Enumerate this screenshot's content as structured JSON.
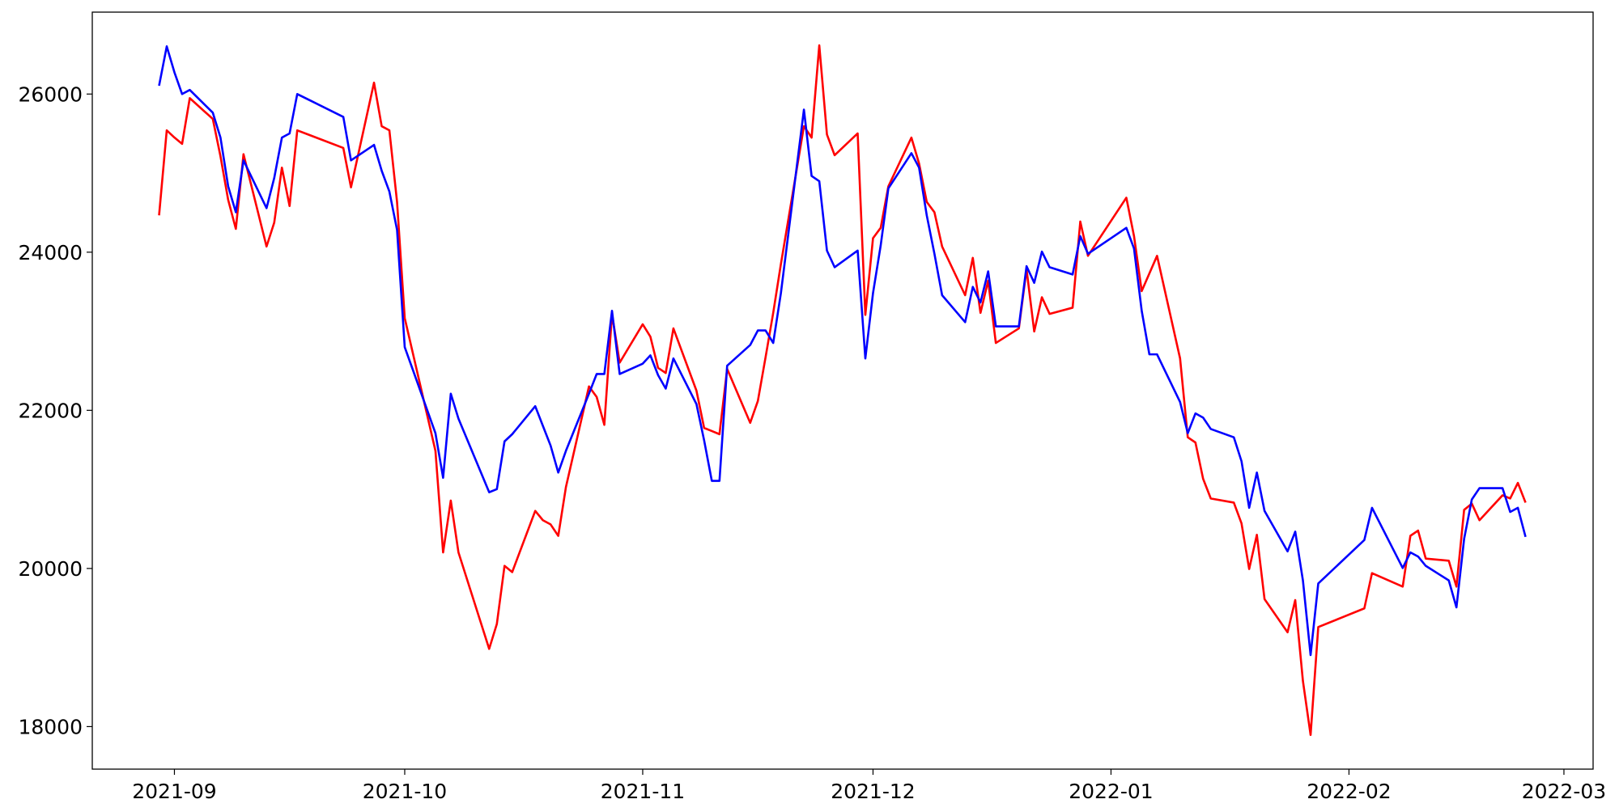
{
  "chart_data": {
    "type": "line",
    "x": [
      18869,
      18870,
      18871,
      18872,
      18873,
      18876,
      18877,
      18878,
      18879,
      18880,
      18883,
      18884,
      18885,
      18886,
      18887,
      18893,
      18894,
      18897,
      18898,
      18899,
      18900,
      18901,
      18905,
      18906,
      18907,
      18908,
      18912,
      18913,
      18914,
      18915,
      18918,
      18919,
      18920,
      18921,
      18922,
      18925,
      18926,
      18927,
      18928,
      18929,
      18932,
      18933,
      18934,
      18935,
      18936,
      18939,
      18940,
      18941,
      18942,
      18943,
      18946,
      18947,
      18948,
      18949,
      18950,
      18953,
      18954,
      18955,
      18956,
      18957,
      18960,
      18961,
      18962,
      18963,
      18964,
      18967,
      18968,
      18969,
      18970,
      18971,
      18974,
      18975,
      18976,
      18977,
      18978,
      18981,
      18982,
      18983,
      18984,
      18985,
      18988,
      18989,
      18990,
      18995,
      18996,
      18997,
      18998,
      18999,
      19002,
      19003,
      19004,
      19005,
      19006,
      19009,
      19010,
      19011,
      19012,
      19013,
      19016,
      19017,
      19018,
      19019,
      19020,
      19026,
      19027,
      19031,
      19032,
      19033,
      19034,
      19037,
      19038,
      19039,
      19040,
      19041,
      19044,
      19045,
      19046,
      19047
    ],
    "series": [
      {
        "color": "#ff0000",
        "values": [
          24466,
          25541,
          25450,
          25370,
          25948,
          25685,
          25213,
          24662,
          24295,
          25239,
          24072,
          24374,
          25069,
          24584,
          25541,
          25318,
          24820,
          26144,
          25593,
          25541,
          24636,
          23167,
          21488,
          20203,
          20859,
          20203,
          18983,
          19298,
          20033,
          19954,
          20728,
          20610,
          20557,
          20413,
          21030,
          22302,
          22170,
          21816,
          23220,
          22603,
          23088,
          22931,
          22537,
          22472,
          23036,
          22249,
          21777,
          21738,
          21698,
          22524,
          21842,
          22118,
          22669,
          23233,
          23849,
          25593,
          25449,
          26616,
          25488,
          25226,
          25502,
          23207,
          24177,
          24308,
          24833,
          25449,
          25121,
          24636,
          24505,
          24072,
          23456,
          23928,
          23233,
          23639,
          22852,
          23036,
          23784,
          22997,
          23430,
          23220,
          23298,
          24387,
          23954,
          24689,
          24203,
          23508,
          23731,
          23954,
          22656,
          21659,
          21593,
          21134,
          20885,
          20833,
          20571,
          19993,
          20426,
          19613,
          19193,
          19600,
          18577,
          17895,
          19259,
          19495,
          19941,
          19771,
          20413,
          20479,
          20125,
          20098,
          19771,
          20741,
          20820,
          20610,
          20925,
          20885,
          21082,
          20833
        ]
      },
      {
        "color": "#0000ff",
        "values": [
          26105,
          26603,
          26275,
          26000,
          26052,
          25764,
          25449,
          24833,
          24505,
          25161,
          24557,
          24938,
          25449,
          25502,
          26000,
          25711,
          25161,
          25357,
          25030,
          24767,
          24282,
          22800,
          21711,
          21147,
          22210,
          21895,
          20964,
          21003,
          21607,
          21698,
          22052,
          21803,
          21554,
          21213,
          21488,
          22210,
          22459,
          22459,
          23259,
          22459,
          22590,
          22695,
          22446,
          22275,
          22656,
          22079,
          21620,
          21108,
          21108,
          22564,
          22826,
          23010,
          23010,
          22852,
          23482,
          25803,
          24964,
          24898,
          24020,
          23810,
          24020,
          22656,
          23482,
          24085,
          24807,
          25252,
          25069,
          24466,
          23980,
          23456,
          23115,
          23561,
          23364,
          23757,
          23062,
          23062,
          23823,
          23613,
          24007,
          23810,
          23718,
          24203,
          23980,
          24308,
          24046,
          23259,
          22708,
          22708,
          22105,
          21711,
          21961,
          21908,
          21764,
          21659,
          21357,
          20767,
          21213,
          20728,
          20216,
          20466,
          19849,
          18905,
          19810,
          20360,
          20767,
          20006,
          20203,
          20151,
          20033,
          19849,
          19508,
          20374,
          20872,
          21016,
          21016,
          20715,
          20767,
          20400
        ]
      }
    ],
    "xlim": [
      18860.3,
      19055.8
    ],
    "xticks": [
      {
        "value": 18871,
        "label": "2021-09"
      },
      {
        "value": 18901,
        "label": "2021-10"
      },
      {
        "value": 18932,
        "label": "2021-11"
      },
      {
        "value": 18962,
        "label": "2021-12"
      },
      {
        "value": 18993,
        "label": "2022-01"
      },
      {
        "value": 19024,
        "label": "2022-02"
      },
      {
        "value": 19052,
        "label": "2022-03"
      }
    ],
    "ylim": [
      17462,
      27036
    ],
    "yticks": [
      18000,
      20000,
      22000,
      24000,
      26000
    ],
    "grid": false
  }
}
